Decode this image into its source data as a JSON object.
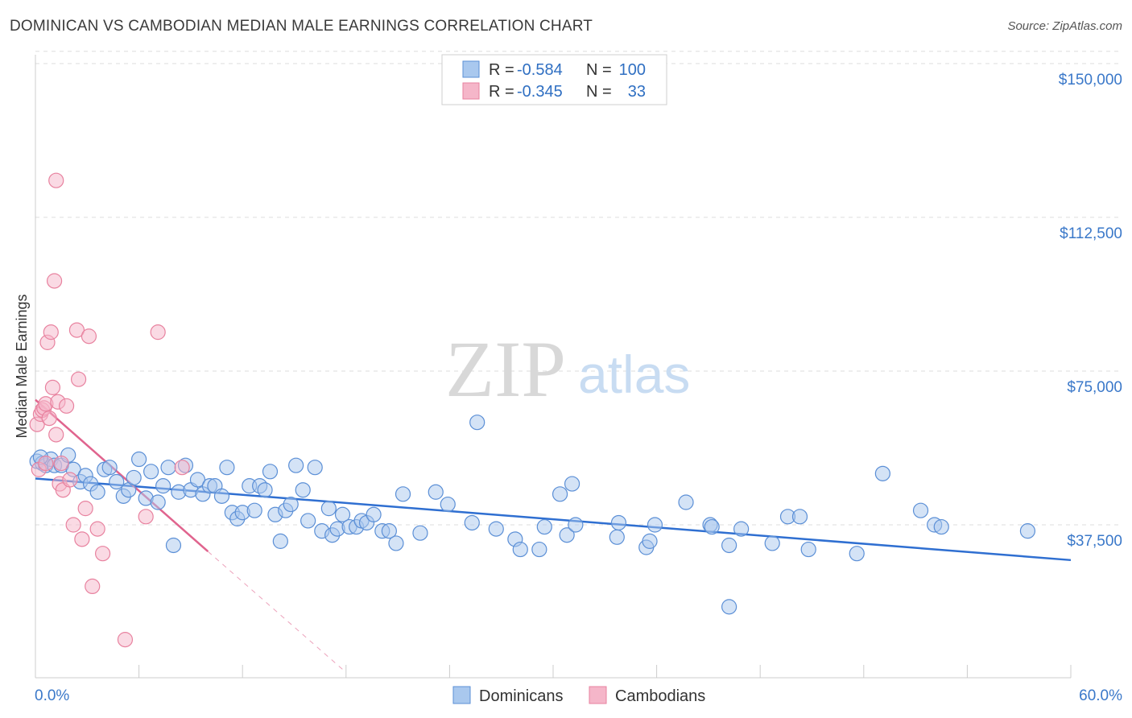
{
  "header": {
    "title": "DOMINICAN VS CAMBODIAN MEDIAN MALE EARNINGS CORRELATION CHART",
    "source": "Source: ZipAtlas.com"
  },
  "watermark": {
    "zip": "ZIP",
    "atlas": "atlas"
  },
  "colors": {
    "blue_fill": "#a9c8ee",
    "blue_stroke": "#5b8fd6",
    "blue_line": "#2f6fd1",
    "pink_fill": "#f5b6c9",
    "pink_stroke": "#e8829f",
    "pink_line": "#e0648e",
    "tick_text": "#3a78c9",
    "grid": "#dddddd"
  },
  "legend": {
    "rows": [
      {
        "r_label": "R = ",
        "r_value": "-0.584",
        "n_label": "N = ",
        "n_value": "100"
      },
      {
        "r_label": "R = ",
        "r_value": "-0.345",
        "n_label": "N = ",
        "n_value": "33"
      }
    ]
  },
  "bottom_legend": [
    "Dominicans",
    "Cambodians"
  ],
  "chart_data": {
    "type": "scatter",
    "title": "DOMINICAN VS CAMBODIAN MEDIAN MALE EARNINGS CORRELATION CHART",
    "xlabel": "",
    "ylabel": "Median Male Earnings",
    "xlim": [
      0,
      60
    ],
    "ylim": [
      0,
      153000
    ],
    "x_tick_labels": [
      "0.0%",
      "60.0%"
    ],
    "y_ticks": [
      37500,
      75000,
      112500,
      150000
    ],
    "y_tick_labels": [
      "$37,500",
      "$75,000",
      "$112,500",
      "$150,000"
    ],
    "grid": true,
    "series": [
      {
        "name": "Dominicans",
        "r": -0.584,
        "n": 100,
        "trend": {
          "x": [
            0,
            60
          ],
          "y": [
            48800,
            28900
          ]
        },
        "points": [
          [
            0.1,
            53000
          ],
          [
            0.4,
            52500
          ],
          [
            0.6,
            52000
          ],
          [
            0.9,
            53500
          ],
          [
            1.1,
            52000
          ],
          [
            1.5,
            52000
          ],
          [
            1.9,
            54500
          ],
          [
            2.2,
            51000
          ],
          [
            2.6,
            48000
          ],
          [
            2.9,
            49500
          ],
          [
            3.2,
            47500
          ],
          [
            3.6,
            45500
          ],
          [
            4.0,
            51000
          ],
          [
            4.3,
            51500
          ],
          [
            4.7,
            48000
          ],
          [
            5.1,
            44500
          ],
          [
            5.4,
            46000
          ],
          [
            5.7,
            49000
          ],
          [
            6.0,
            53500
          ],
          [
            6.4,
            44000
          ],
          [
            6.7,
            50500
          ],
          [
            7.1,
            43000
          ],
          [
            7.4,
            47000
          ],
          [
            7.7,
            51500
          ],
          [
            8.0,
            32500
          ],
          [
            8.3,
            45500
          ],
          [
            8.7,
            52000
          ],
          [
            9.0,
            46000
          ],
          [
            9.4,
            48500
          ],
          [
            9.7,
            45000
          ],
          [
            10.1,
            47000
          ],
          [
            10.4,
            47000
          ],
          [
            10.8,
            44500
          ],
          [
            11.1,
            51500
          ],
          [
            11.4,
            40500
          ],
          [
            11.7,
            39000
          ],
          [
            12.0,
            40500
          ],
          [
            12.4,
            47000
          ],
          [
            12.7,
            41000
          ],
          [
            13.0,
            47000
          ],
          [
            13.3,
            46000
          ],
          [
            13.6,
            50500
          ],
          [
            13.9,
            40000
          ],
          [
            14.2,
            33500
          ],
          [
            14.5,
            41000
          ],
          [
            14.8,
            42500
          ],
          [
            15.1,
            52000
          ],
          [
            15.5,
            46000
          ],
          [
            15.8,
            38500
          ],
          [
            16.2,
            51500
          ],
          [
            16.6,
            36000
          ],
          [
            17.0,
            41500
          ],
          [
            17.2,
            35000
          ],
          [
            17.5,
            36500
          ],
          [
            17.8,
            40000
          ],
          [
            18.2,
            37000
          ],
          [
            18.6,
            37000
          ],
          [
            18.9,
            38500
          ],
          [
            19.2,
            38000
          ],
          [
            19.6,
            40000
          ],
          [
            20.1,
            36000
          ],
          [
            20.5,
            36000
          ],
          [
            20.9,
            33000
          ],
          [
            21.3,
            45000
          ],
          [
            22.3,
            35500
          ],
          [
            23.2,
            45500
          ],
          [
            23.9,
            42500
          ],
          [
            25.3,
            38000
          ],
          [
            25.6,
            62500
          ],
          [
            26.7,
            36500
          ],
          [
            27.8,
            34000
          ],
          [
            28.1,
            31500
          ],
          [
            29.2,
            31500
          ],
          [
            29.5,
            37000
          ],
          [
            30.4,
            45000
          ],
          [
            30.8,
            35000
          ],
          [
            31.1,
            47500
          ],
          [
            31.3,
            37500
          ],
          [
            33.7,
            34500
          ],
          [
            33.8,
            38000
          ],
          [
            35.4,
            32000
          ],
          [
            35.6,
            33500
          ],
          [
            35.9,
            37500
          ],
          [
            37.7,
            43000
          ],
          [
            39.1,
            37500
          ],
          [
            39.2,
            37000
          ],
          [
            40.2,
            32500
          ],
          [
            40.2,
            17500
          ],
          [
            40.9,
            36500
          ],
          [
            42.7,
            33000
          ],
          [
            43.6,
            39500
          ],
          [
            44.3,
            39500
          ],
          [
            44.8,
            31500
          ],
          [
            47.6,
            30500
          ],
          [
            49.1,
            50000
          ],
          [
            51.3,
            41000
          ],
          [
            52.1,
            37500
          ],
          [
            52.5,
            37000
          ],
          [
            57.5,
            36000
          ],
          [
            0.3,
            54000
          ]
        ]
      },
      {
        "name": "Cambodians",
        "r": -0.345,
        "n": 33,
        "trend": {
          "x": [
            0,
            10
          ],
          "y": [
            68000,
            31000
          ]
        },
        "trend_dashed": {
          "x": [
            10,
            18
          ],
          "y": [
            31000,
            1500
          ]
        },
        "points": [
          [
            0.1,
            62000
          ],
          [
            0.3,
            64500
          ],
          [
            0.4,
            65500
          ],
          [
            0.5,
            66000
          ],
          [
            0.6,
            67000
          ],
          [
            0.7,
            82000
          ],
          [
            0.8,
            63500
          ],
          [
            0.9,
            84500
          ],
          [
            1.0,
            71000
          ],
          [
            1.1,
            97000
          ],
          [
            1.2,
            59500
          ],
          [
            1.2,
            121500
          ],
          [
            1.3,
            67500
          ],
          [
            1.4,
            47500
          ],
          [
            1.5,
            52500
          ],
          [
            1.6,
            46000
          ],
          [
            1.8,
            66500
          ],
          [
            2.0,
            48500
          ],
          [
            2.2,
            37500
          ],
          [
            2.4,
            85000
          ],
          [
            2.5,
            73000
          ],
          [
            2.7,
            34000
          ],
          [
            2.9,
            41500
          ],
          [
            3.1,
            83500
          ],
          [
            3.3,
            22500
          ],
          [
            3.6,
            36500
          ],
          [
            3.9,
            30500
          ],
          [
            5.2,
            9500
          ],
          [
            6.4,
            39500
          ],
          [
            7.1,
            84500
          ],
          [
            8.5,
            51500
          ],
          [
            0.2,
            51000
          ],
          [
            0.6,
            52500
          ]
        ]
      }
    ]
  }
}
